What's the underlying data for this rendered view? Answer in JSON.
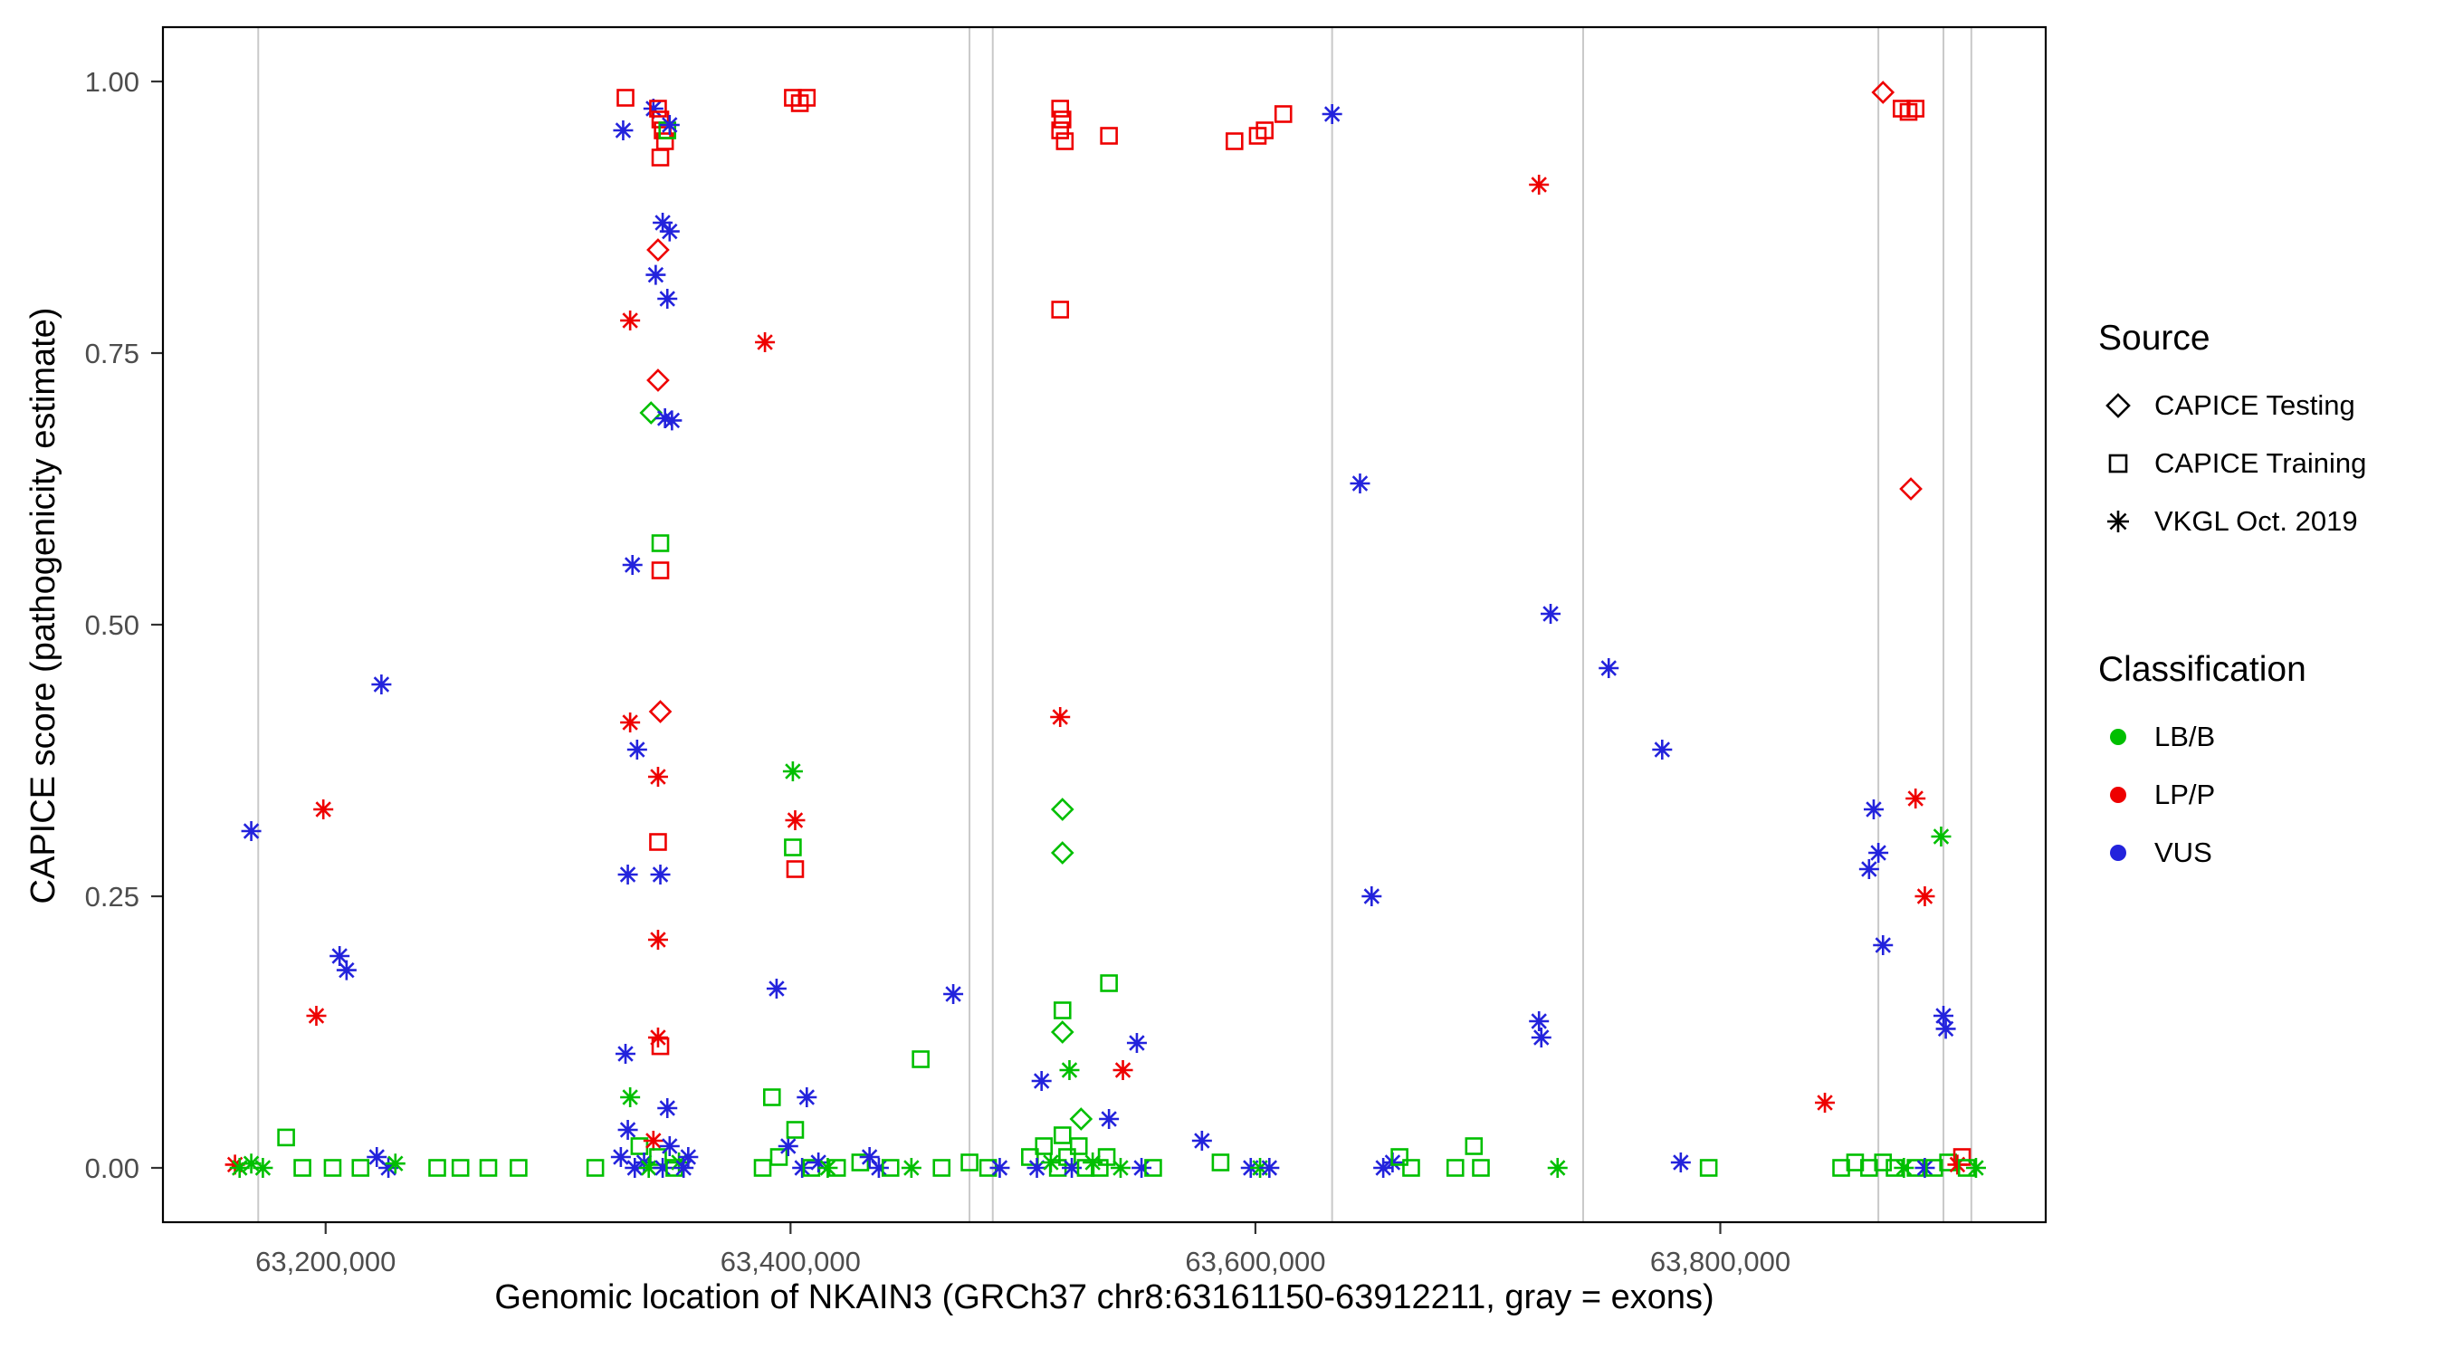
{
  "chart_data": {
    "type": "scatter",
    "title": "",
    "xlabel": "Genomic location of NKAIN3 (GRCh37 chr8:63161150-63912211, gray = exons)",
    "ylabel": "CAPICE score (pathogenicity estimate)",
    "xlim": [
      63130000,
      63940000
    ],
    "ylim": [
      -0.05,
      1.05
    ],
    "grid": "off",
    "x_ticks": [
      {
        "v": 63200000,
        "label": "63,200,000"
      },
      {
        "v": 63400000,
        "label": "63,400,000"
      },
      {
        "v": 63600000,
        "label": "63,600,000"
      },
      {
        "v": 63800000,
        "label": "63,800,000"
      }
    ],
    "y_ticks": [
      {
        "v": 0.0,
        "label": "0.00"
      },
      {
        "v": 0.25,
        "label": "0.25"
      },
      {
        "v": 0.5,
        "label": "0.50"
      },
      {
        "v": 0.75,
        "label": "0.75"
      },
      {
        "v": 1.0,
        "label": "1.00"
      }
    ],
    "exon_positions": [
      63171000,
      63477000,
      63487000,
      63633000,
      63741000,
      63868000,
      63896000,
      63908000
    ],
    "colors": {
      "lbb": "#00BF00",
      "lpp": "#EE0000",
      "vus": "#2323DC",
      "exon_gray": "#C9C9C9"
    },
    "shape_names": {
      "d": "CAPICE Testing",
      "s": "CAPICE Training",
      "a": "VKGL Oct. 2019"
    },
    "class_names": {
      "g": "LB/B",
      "r": "LP/P",
      "b": "VUS"
    },
    "class_color_keys": {
      "g": "lbb",
      "r": "lpp",
      "b": "vus"
    },
    "legend": {
      "position": "right",
      "source_title": "Source",
      "source_items": [
        {
          "label": "CAPICE Testing",
          "shape": "diamond"
        },
        {
          "label": "CAPICE Training",
          "shape": "square"
        },
        {
          "label": "VKGL Oct. 2019",
          "shape": "asterisk"
        }
      ],
      "classification_title": "Classification",
      "classification_items": [
        {
          "label": "LB/B",
          "color_key": "lbb"
        },
        {
          "label": "LP/P",
          "color_key": "lpp"
        },
        {
          "label": "VUS",
          "color_key": "vus"
        }
      ]
    },
    "points": [
      [
        63161000,
        0.003,
        "a",
        "r"
      ],
      [
        63163000,
        0.0,
        "a",
        "g"
      ],
      [
        63168000,
        0.004,
        "a",
        "g"
      ],
      [
        63173000,
        0.0,
        "a",
        "g"
      ],
      [
        63168000,
        0.31,
        "a",
        "b"
      ],
      [
        63183000,
        0.028,
        "s",
        "g"
      ],
      [
        63190000,
        0.0,
        "s",
        "g"
      ],
      [
        63199000,
        0.33,
        "a",
        "r"
      ],
      [
        63196000,
        0.14,
        "a",
        "r"
      ],
      [
        63206000,
        0.195,
        "a",
        "b"
      ],
      [
        63209000,
        0.182,
        "a",
        "b"
      ],
      [
        63203000,
        0.0,
        "s",
        "g"
      ],
      [
        63215000,
        0.0,
        "s",
        "g"
      ],
      [
        63224000,
        0.445,
        "a",
        "b"
      ],
      [
        63222000,
        0.01,
        "a",
        "b"
      ],
      [
        63227000,
        0.0,
        "a",
        "b"
      ],
      [
        63230000,
        0.004,
        "a",
        "g"
      ],
      [
        63248000,
        0.0,
        "s",
        "g"
      ],
      [
        63258000,
        0.0,
        "s",
        "g"
      ],
      [
        63270000,
        0.0,
        "s",
        "g"
      ],
      [
        63283000,
        0.0,
        "s",
        "g"
      ],
      [
        63328000,
        0.955,
        "a",
        "b"
      ],
      [
        63329000,
        0.985,
        "s",
        "r"
      ],
      [
        63341000,
        0.975,
        "a",
        "b"
      ],
      [
        63343000,
        0.975,
        "s",
        "r"
      ],
      [
        63344000,
        0.965,
        "s",
        "r"
      ],
      [
        63345000,
        0.955,
        "s",
        "r"
      ],
      [
        63346000,
        0.945,
        "s",
        "r"
      ],
      [
        63344000,
        0.93,
        "s",
        "r"
      ],
      [
        63347000,
        0.955,
        "s",
        "g"
      ],
      [
        63348000,
        0.96,
        "a",
        "b"
      ],
      [
        63331000,
        0.78,
        "a",
        "r"
      ],
      [
        63345000,
        0.87,
        "a",
        "b"
      ],
      [
        63348000,
        0.862,
        "a",
        "b"
      ],
      [
        63342000,
        0.822,
        "a",
        "b"
      ],
      [
        63347000,
        0.8,
        "a",
        "b"
      ],
      [
        63343000,
        0.845,
        "d",
        "r"
      ],
      [
        63343000,
        0.725,
        "d",
        "r"
      ],
      [
        63340000,
        0.695,
        "d",
        "g"
      ],
      [
        63346000,
        0.69,
        "a",
        "b"
      ],
      [
        63349000,
        0.688,
        "a",
        "b"
      ],
      [
        63332000,
        0.555,
        "a",
        "b"
      ],
      [
        63344000,
        0.575,
        "s",
        "g"
      ],
      [
        63344000,
        0.55,
        "s",
        "r"
      ],
      [
        63331000,
        0.41,
        "a",
        "r"
      ],
      [
        63344000,
        0.42,
        "d",
        "r"
      ],
      [
        63334000,
        0.385,
        "a",
        "b"
      ],
      [
        63343000,
        0.36,
        "a",
        "r"
      ],
      [
        63330000,
        0.27,
        "a",
        "b"
      ],
      [
        63344000,
        0.27,
        "a",
        "b"
      ],
      [
        63343000,
        0.3,
        "s",
        "r"
      ],
      [
        63343000,
        0.21,
        "a",
        "r"
      ],
      [
        63329000,
        0.105,
        "a",
        "b"
      ],
      [
        63331000,
        0.065,
        "a",
        "g"
      ],
      [
        63343000,
        0.12,
        "a",
        "r"
      ],
      [
        63344000,
        0.112,
        "s",
        "r"
      ],
      [
        63316000,
        0.0,
        "s",
        "g"
      ],
      [
        63327000,
        0.01,
        "a",
        "b"
      ],
      [
        63330000,
        0.035,
        "a",
        "b"
      ],
      [
        63333000,
        0.0,
        "a",
        "b"
      ],
      [
        63335000,
        0.02,
        "s",
        "g"
      ],
      [
        63337000,
        0.005,
        "a",
        "b"
      ],
      [
        63339000,
        0.0,
        "a",
        "g"
      ],
      [
        63341000,
        0.025,
        "a",
        "r"
      ],
      [
        63343000,
        0.01,
        "s",
        "g"
      ],
      [
        63345000,
        0.0,
        "a",
        "b"
      ],
      [
        63347000,
        0.055,
        "a",
        "b"
      ],
      [
        63348000,
        0.02,
        "a",
        "b"
      ],
      [
        63350000,
        0.0,
        "s",
        "g"
      ],
      [
        63352000,
        0.005,
        "a",
        "g"
      ],
      [
        63354000,
        0.0,
        "a",
        "b"
      ],
      [
        63356000,
        0.01,
        "a",
        "b"
      ],
      [
        63401000,
        0.985,
        "s",
        "r"
      ],
      [
        63404000,
        0.98,
        "s",
        "r"
      ],
      [
        63407000,
        0.985,
        "s",
        "r"
      ],
      [
        63389000,
        0.76,
        "a",
        "r"
      ],
      [
        63401000,
        0.365,
        "a",
        "g"
      ],
      [
        63402000,
        0.32,
        "a",
        "r"
      ],
      [
        63401000,
        0.295,
        "s",
        "g"
      ],
      [
        63402000,
        0.275,
        "s",
        "r"
      ],
      [
        63394000,
        0.165,
        "a",
        "b"
      ],
      [
        63407000,
        0.065,
        "a",
        "b"
      ],
      [
        63392000,
        0.065,
        "s",
        "g"
      ],
      [
        63388000,
        0.0,
        "s",
        "g"
      ],
      [
        63395000,
        0.01,
        "s",
        "g"
      ],
      [
        63399000,
        0.02,
        "a",
        "b"
      ],
      [
        63402000,
        0.035,
        "s",
        "g"
      ],
      [
        63405000,
        0.0,
        "a",
        "b"
      ],
      [
        63409000,
        0.0,
        "s",
        "g"
      ],
      [
        63412000,
        0.005,
        "a",
        "b"
      ],
      [
        63416000,
        0.0,
        "a",
        "g"
      ],
      [
        63420000,
        0.0,
        "s",
        "g"
      ],
      [
        63430000,
        0.005,
        "s",
        "g"
      ],
      [
        63434000,
        0.01,
        "a",
        "b"
      ],
      [
        63438000,
        0.0,
        "a",
        "b"
      ],
      [
        63443000,
        0.0,
        "s",
        "g"
      ],
      [
        63452000,
        0.0,
        "a",
        "g"
      ],
      [
        63456000,
        0.1,
        "s",
        "g"
      ],
      [
        63470000,
        0.16,
        "a",
        "b"
      ],
      [
        63465000,
        0.0,
        "s",
        "g"
      ],
      [
        63477000,
        0.005,
        "s",
        "g"
      ],
      [
        63485000,
        0.0,
        "s",
        "g"
      ],
      [
        63490000,
        0.0,
        "a",
        "b"
      ],
      [
        63516000,
        0.975,
        "s",
        "r"
      ],
      [
        63517000,
        0.965,
        "s",
        "r"
      ],
      [
        63516000,
        0.955,
        "s",
        "r"
      ],
      [
        63518000,
        0.945,
        "s",
        "r"
      ],
      [
        63537000,
        0.95,
        "s",
        "r"
      ],
      [
        63516000,
        0.79,
        "s",
        "r"
      ],
      [
        63516000,
        0.415,
        "a",
        "r"
      ],
      [
        63517000,
        0.33,
        "d",
        "g"
      ],
      [
        63517000,
        0.29,
        "d",
        "g"
      ],
      [
        63537000,
        0.17,
        "s",
        "g"
      ],
      [
        63517000,
        0.145,
        "s",
        "g"
      ],
      [
        63517000,
        0.125,
        "d",
        "g"
      ],
      [
        63520000,
        0.09,
        "a",
        "g"
      ],
      [
        63508000,
        0.08,
        "a",
        "b"
      ],
      [
        63543000,
        0.09,
        "a",
        "r"
      ],
      [
        63549000,
        0.115,
        "a",
        "b"
      ],
      [
        63525000,
        0.045,
        "d",
        "g"
      ],
      [
        63537000,
        0.045,
        "a",
        "b"
      ],
      [
        63503000,
        0.01,
        "s",
        "g"
      ],
      [
        63506000,
        0.0,
        "a",
        "b"
      ],
      [
        63509000,
        0.02,
        "s",
        "g"
      ],
      [
        63512000,
        0.005,
        "a",
        "g"
      ],
      [
        63515000,
        0.0,
        "s",
        "g"
      ],
      [
        63517000,
        0.03,
        "s",
        "g"
      ],
      [
        63519000,
        0.01,
        "s",
        "g"
      ],
      [
        63521000,
        0.0,
        "a",
        "b"
      ],
      [
        63524000,
        0.02,
        "s",
        "g"
      ],
      [
        63527000,
        0.0,
        "s",
        "g"
      ],
      [
        63530000,
        0.005,
        "a",
        "g"
      ],
      [
        63533000,
        0.0,
        "s",
        "g"
      ],
      [
        63536000,
        0.01,
        "s",
        "g"
      ],
      [
        63542000,
        0.0,
        "a",
        "g"
      ],
      [
        63551000,
        0.0,
        "a",
        "b"
      ],
      [
        63556000,
        0.0,
        "s",
        "g"
      ],
      [
        63577000,
        0.025,
        "a",
        "b"
      ],
      [
        63585000,
        0.005,
        "s",
        "g"
      ],
      [
        63591000,
        0.945,
        "s",
        "r"
      ],
      [
        63601000,
        0.95,
        "s",
        "r"
      ],
      [
        63604000,
        0.955,
        "s",
        "r"
      ],
      [
        63612000,
        0.97,
        "s",
        "r"
      ],
      [
        63633000,
        0.97,
        "a",
        "b"
      ],
      [
        63598000,
        0.0,
        "a",
        "b"
      ],
      [
        63602000,
        0.0,
        "a",
        "g"
      ],
      [
        63606000,
        0.0,
        "a",
        "b"
      ],
      [
        63645000,
        0.63,
        "a",
        "b"
      ],
      [
        63650000,
        0.25,
        "a",
        "b"
      ],
      [
        63655000,
        0.0,
        "a",
        "b"
      ],
      [
        63659000,
        0.005,
        "a",
        "b"
      ],
      [
        63662000,
        0.01,
        "s",
        "g"
      ],
      [
        63667000,
        0.0,
        "s",
        "g"
      ],
      [
        63686000,
        0.0,
        "s",
        "g"
      ],
      [
        63694000,
        0.02,
        "s",
        "g"
      ],
      [
        63697000,
        0.0,
        "s",
        "g"
      ],
      [
        63722000,
        0.905,
        "a",
        "r"
      ],
      [
        63727000,
        0.51,
        "a",
        "b"
      ],
      [
        63722000,
        0.135,
        "a",
        "b"
      ],
      [
        63723000,
        0.12,
        "a",
        "b"
      ],
      [
        63730000,
        0.0,
        "a",
        "g"
      ],
      [
        63752000,
        0.46,
        "a",
        "b"
      ],
      [
        63775000,
        0.385,
        "a",
        "b"
      ],
      [
        63783000,
        0.005,
        "a",
        "b"
      ],
      [
        63795000,
        0.0,
        "s",
        "g"
      ],
      [
        63845000,
        0.06,
        "a",
        "r"
      ],
      [
        63852000,
        0.0,
        "s",
        "g"
      ],
      [
        63858000,
        0.005,
        "s",
        "g"
      ],
      [
        63864000,
        0.275,
        "a",
        "b"
      ],
      [
        63866000,
        0.33,
        "a",
        "b"
      ],
      [
        63868000,
        0.29,
        "a",
        "b"
      ],
      [
        63870000,
        0.99,
        "d",
        "r"
      ],
      [
        63878000,
        0.975,
        "s",
        "r"
      ],
      [
        63881000,
        0.972,
        "s",
        "r"
      ],
      [
        63884000,
        0.975,
        "s",
        "r"
      ],
      [
        63882000,
        0.625,
        "d",
        "r"
      ],
      [
        63884000,
        0.34,
        "a",
        "r"
      ],
      [
        63888000,
        0.25,
        "a",
        "r"
      ],
      [
        63870000,
        0.205,
        "a",
        "b"
      ],
      [
        63864000,
        0.0,
        "s",
        "g"
      ],
      [
        63870000,
        0.005,
        "s",
        "g"
      ],
      [
        63875000,
        0.0,
        "s",
        "g"
      ],
      [
        63879000,
        0.0,
        "a",
        "g"
      ],
      [
        63884000,
        0.0,
        "s",
        "g"
      ],
      [
        63888000,
        0.0,
        "a",
        "b"
      ],
      [
        63895000,
        0.305,
        "a",
        "g"
      ],
      [
        63896000,
        0.14,
        "a",
        "b"
      ],
      [
        63897000,
        0.128,
        "a",
        "b"
      ],
      [
        63892000,
        0.0,
        "s",
        "g"
      ],
      [
        63898000,
        0.005,
        "s",
        "g"
      ],
      [
        63902000,
        0.003,
        "a",
        "r"
      ],
      [
        63904000,
        0.01,
        "s",
        "r"
      ],
      [
        63906000,
        0.0,
        "s",
        "g"
      ],
      [
        63910000,
        0.0,
        "a",
        "g"
      ]
    ]
  }
}
